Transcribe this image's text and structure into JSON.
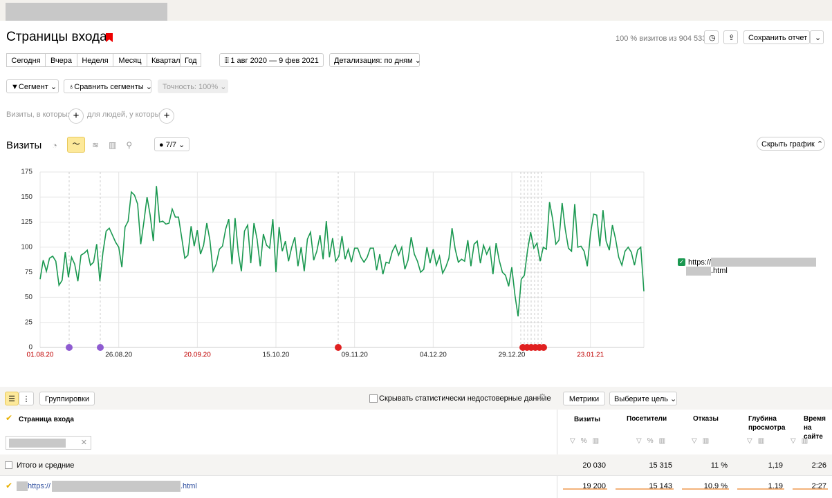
{
  "header": {
    "title": "Страницы входа",
    "visits_summary": "100 % визитов из 904 533",
    "save_button": "Сохранить отчет"
  },
  "periods": [
    "Сегодня",
    "Вчера",
    "Неделя",
    "Месяц",
    "Квартал",
    "Год"
  ],
  "date_range": "1 авг 2020 — 9 фев 2021",
  "detail": "Детализация: по дням",
  "segment": "Сегмент",
  "compare": "Сравнить сегменты",
  "accuracy": "Точность: 100%",
  "filters": [
    "Визиты, в которых",
    "для людей, у которых"
  ],
  "chart_section": {
    "title": "Визиты",
    "comments": "7/7",
    "hide": "Скрыть график"
  },
  "chart_data": {
    "type": "line",
    "grid": true,
    "weekend_color": "#c00000",
    "ylim": [
      0,
      175
    ],
    "yticks": [
      0,
      25,
      50,
      75,
      100,
      125,
      150,
      175
    ],
    "categories": [
      "01.08.20",
      null,
      null,
      null,
      null,
      null,
      null,
      null,
      null,
      null,
      null,
      null,
      null,
      null,
      null,
      null,
      null,
      null,
      null,
      null,
      null,
      null,
      null,
      null,
      null,
      "26.08.20",
      null,
      null,
      null,
      null,
      null,
      null,
      null,
      null,
      null,
      null,
      null,
      null,
      null,
      null,
      null,
      null,
      null,
      null,
      null,
      null,
      null,
      null,
      null,
      null,
      "20.09.20",
      null,
      null,
      null,
      null,
      null,
      null,
      null,
      null,
      null,
      null,
      null,
      null,
      null,
      null,
      null,
      null,
      null,
      null,
      null,
      null,
      null,
      null,
      null,
      null,
      "15.10.20",
      null,
      null,
      null,
      null,
      null,
      null,
      null,
      null,
      null,
      null,
      null,
      null,
      null,
      null,
      null,
      null,
      null,
      null,
      null,
      null,
      null,
      null,
      null,
      null,
      "09.11.20",
      null,
      null,
      null,
      null,
      null,
      null,
      null,
      null,
      null,
      null,
      null,
      null,
      null,
      null,
      null,
      null,
      null,
      null,
      null,
      null,
      null,
      null,
      null,
      null,
      "04.12.20",
      null,
      null,
      null,
      null,
      null,
      null,
      null,
      null,
      null,
      null,
      null,
      null,
      null,
      null,
      null,
      null,
      null,
      null,
      null,
      null,
      null,
      null,
      null,
      null,
      "29.12.20",
      null,
      null,
      null,
      null,
      null,
      null,
      null,
      null,
      null,
      null,
      null,
      null,
      null,
      null,
      null,
      null,
      null,
      null,
      null,
      null,
      null,
      null,
      null,
      null,
      "23.01.21",
      null,
      null,
      null,
      null,
      null,
      null,
      null,
      null,
      null,
      null,
      null,
      null,
      null,
      null,
      null,
      null,
      null
    ],
    "series": [
      {
        "name": "https://",
        "legend_suffix": ".html",
        "color": "#1a9850",
        "values": [
          68,
          87,
          76,
          89,
          91,
          86,
          62,
          67,
          95,
          70,
          90,
          83,
          66,
          92,
          94,
          97,
          82,
          85,
          103,
          66,
          95,
          116,
          119,
          112,
          105,
          100,
          80,
          120,
          126,
          155,
          152,
          143,
          103,
          125,
          150,
          132,
          106,
          161,
          125,
          126,
          123,
          124,
          138,
          130,
          130,
          110,
          89,
          92,
          121,
          101,
          117,
          93,
          102,
          124,
          107,
          76,
          83,
          98,
          101,
          118,
          128,
          83,
          129,
          95,
          76,
          116,
          122,
          84,
          124,
          108,
          81,
          113,
          102,
          99,
          128,
          75,
          120,
          96,
          106,
          86,
          100,
          110,
          81,
          100,
          76,
          108,
          115,
          87,
          96,
          112,
          88,
          126,
          90,
          109,
          86,
          91,
          111,
          88,
          98,
          85,
          99,
          99,
          90,
          85,
          90,
          99,
          99,
          77,
          93,
          73,
          85,
          84,
          96,
          102,
          92,
          100,
          78,
          87,
          110,
          93,
          86,
          75,
          78,
          100,
          84,
          98,
          82,
          91,
          74,
          80,
          89,
          119,
          98,
          85,
          88,
          86,
          107,
          81,
          103,
          106,
          84,
          102,
          93,
          100,
          73,
          104,
          87,
          75,
          72,
          61,
          80,
          52,
          31,
          68,
          72,
          97,
          115,
          99,
          104,
          86,
          100,
          98,
          145,
          128,
          103,
          107,
          144,
          118,
          99,
          96,
          143,
          100,
          101,
          96,
          81,
          113,
          133,
          132,
          101,
          137,
          106,
          97,
          122,
          108,
          90,
          82,
          96,
          100,
          95,
          82,
          97,
          100,
          56
        ]
      }
    ]
  },
  "table": {
    "groupings": "Группировки",
    "hide_unreliable": "Скрывать статистически недостоверные данные",
    "metrics": "Метрики",
    "goal": "Выберите цель",
    "dimension": "Страница входа",
    "columns": [
      "Визиты",
      "Посетители",
      "Отказы",
      "Глубина просмотра",
      "Время на сайте"
    ],
    "rows": [
      {
        "label": "Итого и средние",
        "cells": [
          "20 030",
          "15 315",
          "11 %",
          "1,19",
          "2:26"
        ]
      },
      {
        "label": "https://",
        "suffix": ".html",
        "cells": [
          "19 200",
          "15 143",
          "10,9 %",
          "1,19",
          "2:27"
        ]
      }
    ]
  }
}
